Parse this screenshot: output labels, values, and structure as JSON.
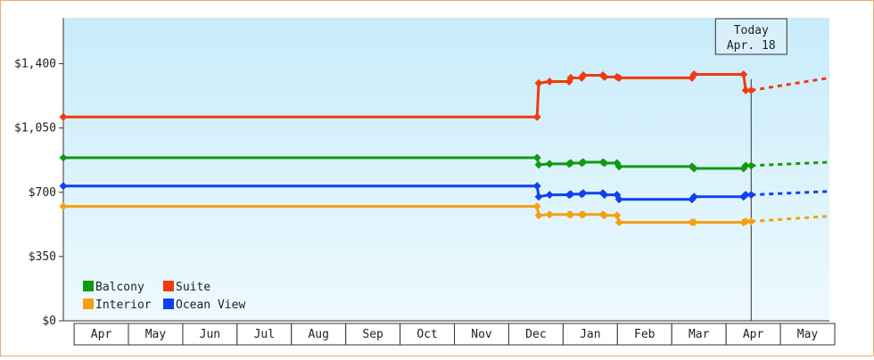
{
  "chart_data": {
    "type": "line",
    "xlim": [
      -0.1,
      14
    ],
    "xticks": [
      {
        "value": 0.5,
        "label": "Apr"
      },
      {
        "value": 1.5,
        "label": "May"
      },
      {
        "value": 2.5,
        "label": "Jun"
      },
      {
        "value": 3.5,
        "label": "Jul"
      },
      {
        "value": 4.5,
        "label": "Aug"
      },
      {
        "value": 5.5,
        "label": "Sep"
      },
      {
        "value": 6.5,
        "label": "Oct"
      },
      {
        "value": 7.5,
        "label": "Nov"
      },
      {
        "value": 8.5,
        "label": "Dec"
      },
      {
        "value": 9.5,
        "label": "Jan"
      },
      {
        "value": 10.5,
        "label": "Feb"
      },
      {
        "value": 11.5,
        "label": "Mar"
      },
      {
        "value": 12.5,
        "label": "Apr"
      },
      {
        "value": 13.5,
        "label": "May"
      }
    ],
    "ylim": [
      0,
      1650
    ],
    "yticks": [
      {
        "value": 0,
        "label": "$0"
      },
      {
        "value": 350,
        "label": "$350"
      },
      {
        "value": 700,
        "label": "$700"
      },
      {
        "value": 1050,
        "label": "$1,050"
      },
      {
        "value": 1400,
        "label": "$1,400"
      }
    ],
    "annotation": {
      "x": 12.56,
      "lines": [
        "Today",
        "Apr. 18"
      ]
    },
    "legend": "lower left",
    "series": [
      {
        "name": "Balcony",
        "color": "#109a10",
        "x": [
          -0.1,
          8.62,
          8.65,
          8.85,
          9.21,
          9.24,
          9.44,
          9.47,
          9.83,
          9.86,
          10.09,
          10.13,
          11.47,
          11.51,
          12.42,
          12.46,
          12.56
        ],
        "values": [
          888,
          888,
          850,
          855,
          855,
          859,
          859,
          864,
          864,
          859,
          859,
          840,
          840,
          830,
          830,
          845,
          845
        ],
        "forecast": {
          "x": [
            12.56,
            14
          ],
          "values": [
            845,
            864
          ]
        }
      },
      {
        "name": "Suite",
        "color": "#f03a10",
        "x": [
          -0.1,
          8.62,
          8.65,
          8.85,
          9.21,
          9.24,
          9.44,
          9.47,
          9.83,
          9.86,
          10.09,
          10.13,
          11.47,
          11.51,
          12.42,
          12.46,
          12.56
        ],
        "values": [
          1110,
          1110,
          1294,
          1303,
          1303,
          1323,
          1323,
          1337,
          1337,
          1328,
          1328,
          1323,
          1323,
          1342,
          1342,
          1255,
          1255
        ],
        "forecast": {
          "x": [
            12.56,
            14
          ],
          "values": [
            1255,
            1323
          ]
        }
      },
      {
        "name": "Interior",
        "color": "#f5a010",
        "x": [
          -0.1,
          8.62,
          8.65,
          8.85,
          9.21,
          9.24,
          9.44,
          9.47,
          9.83,
          9.86,
          10.09,
          10.13,
          11.47,
          11.51,
          12.42,
          12.46,
          12.56
        ],
        "values": [
          623,
          623,
          574,
          579,
          579,
          579,
          579,
          579,
          579,
          574,
          574,
          536,
          536,
          536,
          536,
          541,
          541
        ],
        "forecast": {
          "x": [
            12.56,
            14
          ],
          "values": [
            541,
            570
          ]
        }
      },
      {
        "name": "Ocean View",
        "color": "#1040f0",
        "x": [
          -0.1,
          8.62,
          8.65,
          8.85,
          9.21,
          9.24,
          9.44,
          9.47,
          9.83,
          9.86,
          10.09,
          10.13,
          11.47,
          11.51,
          12.42,
          12.46,
          12.56
        ],
        "values": [
          734,
          734,
          676,
          686,
          686,
          690,
          690,
          695,
          695,
          686,
          686,
          661,
          661,
          676,
          676,
          686,
          686
        ],
        "forecast": {
          "x": [
            12.56,
            14
          ],
          "values": [
            686,
            705
          ]
        }
      }
    ]
  }
}
